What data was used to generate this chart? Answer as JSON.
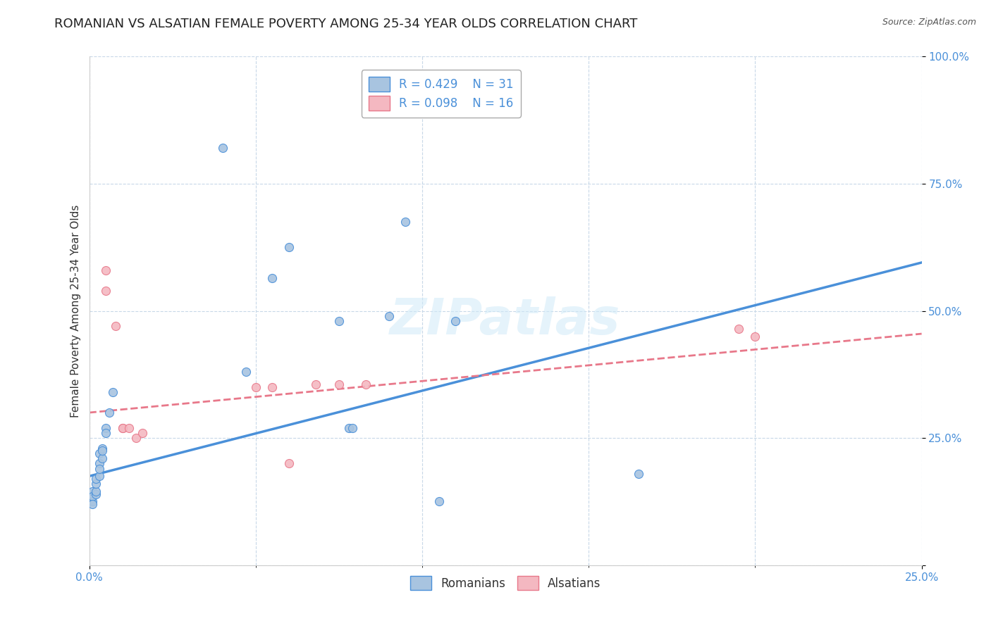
{
  "title": "ROMANIAN VS ALSATIAN FEMALE POVERTY AMONG 25-34 YEAR OLDS CORRELATION CHART",
  "source": "Source: ZipAtlas.com",
  "ylabel": "Female Poverty Among 25-34 Year Olds",
  "xlim": [
    0.0,
    0.25
  ],
  "ylim": [
    0.0,
    1.0
  ],
  "romanian_color": "#a8c4e0",
  "alsatian_color": "#f4b8c1",
  "romanian_line_color": "#4a90d9",
  "alsatian_line_color": "#e8788a",
  "legend_R1": "R = 0.429",
  "legend_N1": "N = 31",
  "legend_R2": "R = 0.098",
  "legend_N2": "N = 16",
  "watermark": "ZIPatlas",
  "romanians_scatter": [
    [
      0.001,
      0.145
    ],
    [
      0.001,
      0.125
    ],
    [
      0.001,
      0.135
    ],
    [
      0.001,
      0.12
    ],
    [
      0.002,
      0.14
    ],
    [
      0.002,
      0.145
    ],
    [
      0.002,
      0.16
    ],
    [
      0.002,
      0.17
    ],
    [
      0.003,
      0.175
    ],
    [
      0.003,
      0.2
    ],
    [
      0.003,
      0.19
    ],
    [
      0.003,
      0.22
    ],
    [
      0.004,
      0.21
    ],
    [
      0.004,
      0.23
    ],
    [
      0.004,
      0.225
    ],
    [
      0.005,
      0.27
    ],
    [
      0.005,
      0.26
    ],
    [
      0.006,
      0.3
    ],
    [
      0.007,
      0.34
    ],
    [
      0.04,
      0.82
    ],
    [
      0.047,
      0.38
    ],
    [
      0.055,
      0.565
    ],
    [
      0.06,
      0.625
    ],
    [
      0.075,
      0.48
    ],
    [
      0.078,
      0.27
    ],
    [
      0.079,
      0.27
    ],
    [
      0.09,
      0.49
    ],
    [
      0.095,
      0.675
    ],
    [
      0.11,
      0.48
    ],
    [
      0.165,
      0.18
    ],
    [
      0.105,
      0.125
    ]
  ],
  "alsatians_scatter": [
    [
      0.005,
      0.58
    ],
    [
      0.005,
      0.54
    ],
    [
      0.008,
      0.47
    ],
    [
      0.01,
      0.27
    ],
    [
      0.01,
      0.27
    ],
    [
      0.012,
      0.27
    ],
    [
      0.014,
      0.25
    ],
    [
      0.016,
      0.26
    ],
    [
      0.05,
      0.35
    ],
    [
      0.055,
      0.35
    ],
    [
      0.06,
      0.2
    ],
    [
      0.068,
      0.355
    ],
    [
      0.075,
      0.355
    ],
    [
      0.083,
      0.355
    ],
    [
      0.195,
      0.465
    ],
    [
      0.2,
      0.45
    ]
  ],
  "romanian_line_x": [
    0.0,
    0.25
  ],
  "romanian_line_y": [
    0.175,
    0.595
  ],
  "alsatian_line_x": [
    0.0,
    0.25
  ],
  "alsatian_line_y": [
    0.3,
    0.455
  ],
  "background_color": "#ffffff",
  "grid_color": "#c8d8e8",
  "title_fontsize": 13,
  "axis_label_fontsize": 11,
  "tick_fontsize": 11,
  "marker_size": 75
}
